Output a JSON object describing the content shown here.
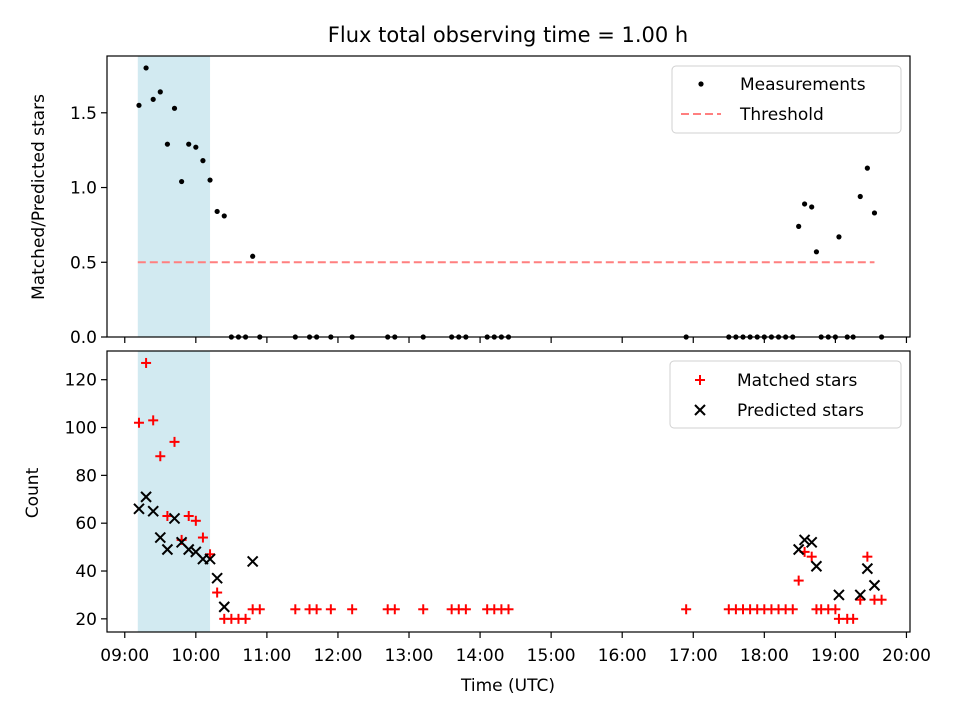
{
  "title": "Flux total observing time = 1.00 h",
  "colors": {
    "measure": "#000000",
    "threshold": "#ff7f7f",
    "matched": "#ff0000",
    "predicted": "#000000",
    "shade": "#add8e6"
  },
  "chart_data": [
    {
      "type": "scatter",
      "title": "Flux total observing time = 1.00 h",
      "xlabel": "",
      "ylabel": "Matched/Predicted stars",
      "xlim": [
        "08:45",
        "20:03"
      ],
      "ylim": [
        0,
        1.88
      ],
      "yticks": [
        "0.0",
        "0.5",
        "1.0",
        "1.5"
      ],
      "legend": {
        "placement": "top-right",
        "entries": [
          "Measurements",
          "Threshold"
        ]
      },
      "shaded_span": [
        "09:11",
        "10:12"
      ],
      "threshold": {
        "name": "Threshold",
        "y": 0.5,
        "x_start": "09:11",
        "x_end": "19:33"
      },
      "series": [
        {
          "name": "Measurements",
          "points": [
            [
              "09:12",
              1.55
            ],
            [
              "09:18",
              1.8
            ],
            [
              "09:24",
              1.59
            ],
            [
              "09:30",
              1.64
            ],
            [
              "09:36",
              1.29
            ],
            [
              "09:42",
              1.53
            ],
            [
              "09:48",
              1.04
            ],
            [
              "09:54",
              1.29
            ],
            [
              "10:00",
              1.27
            ],
            [
              "10:06",
              1.18
            ],
            [
              "10:12",
              1.05
            ],
            [
              "10:18",
              0.84
            ],
            [
              "10:24",
              0.81
            ],
            [
              "10:30",
              0.0
            ],
            [
              "10:36",
              0.0
            ],
            [
              "10:42",
              0.0
            ],
            [
              "10:48",
              0.54
            ],
            [
              "10:54",
              0.0
            ],
            [
              "11:24",
              0.0
            ],
            [
              "11:36",
              0.0
            ],
            [
              "11:42",
              0.0
            ],
            [
              "11:54",
              0.0
            ],
            [
              "12:12",
              0.0
            ],
            [
              "12:42",
              0.0
            ],
            [
              "12:48",
              0.0
            ],
            [
              "13:12",
              0.0
            ],
            [
              "13:36",
              0.0
            ],
            [
              "13:42",
              0.0
            ],
            [
              "13:48",
              0.0
            ],
            [
              "14:06",
              0.0
            ],
            [
              "14:12",
              0.0
            ],
            [
              "14:18",
              0.0
            ],
            [
              "14:24",
              0.0
            ],
            [
              "16:54",
              0.0
            ],
            [
              "17:30",
              0.0
            ],
            [
              "17:36",
              0.0
            ],
            [
              "17:42",
              0.0
            ],
            [
              "17:48",
              0.0
            ],
            [
              "17:54",
              0.0
            ],
            [
              "18:00",
              0.0
            ],
            [
              "18:06",
              0.0
            ],
            [
              "18:12",
              0.0
            ],
            [
              "18:18",
              0.0
            ],
            [
              "18:24",
              0.0
            ],
            [
              "18:29",
              0.74
            ],
            [
              "18:34",
              0.89
            ],
            [
              "18:40",
              0.87
            ],
            [
              "18:44",
              0.57
            ],
            [
              "18:48",
              0.0
            ],
            [
              "18:54",
              0.0
            ],
            [
              "19:00",
              0.0
            ],
            [
              "19:03",
              0.67
            ],
            [
              "19:10",
              0.0
            ],
            [
              "19:15",
              0.0
            ],
            [
              "19:21",
              0.94
            ],
            [
              "19:27",
              1.13
            ],
            [
              "19:33",
              0.83
            ],
            [
              "19:39",
              0.0
            ]
          ]
        }
      ]
    },
    {
      "type": "scatter",
      "xlabel": "Time (UTC)",
      "ylabel": "Count",
      "xlim": [
        "08:45",
        "20:03"
      ],
      "ylim": [
        14.5,
        132
      ],
      "xticks": [
        "09:00",
        "10:00",
        "11:00",
        "12:00",
        "13:00",
        "14:00",
        "15:00",
        "16:00",
        "17:00",
        "18:00",
        "19:00",
        "20:00"
      ],
      "yticks": [
        "20",
        "40",
        "60",
        "80",
        "100",
        "120"
      ],
      "legend": {
        "placement": "top-right",
        "entries": [
          "Matched stars",
          "Predicted stars"
        ]
      },
      "shaded_span": [
        "09:11",
        "10:12"
      ],
      "series": [
        {
          "name": "Matched stars",
          "points": [
            [
              "09:12",
              102
            ],
            [
              "09:18",
              127
            ],
            [
              "09:24",
              103
            ],
            [
              "09:30",
              88
            ],
            [
              "09:36",
              63
            ],
            [
              "09:42",
              94
            ],
            [
              "09:48",
              53
            ],
            [
              "09:54",
              63
            ],
            [
              "10:00",
              61
            ],
            [
              "10:06",
              54
            ],
            [
              "10:12",
              47
            ],
            [
              "10:18",
              31
            ],
            [
              "10:24",
              20
            ],
            [
              "10:30",
              20
            ],
            [
              "10:36",
              20
            ],
            [
              "10:42",
              20
            ],
            [
              "10:48",
              24
            ],
            [
              "10:54",
              24
            ],
            [
              "11:24",
              24
            ],
            [
              "11:36",
              24
            ],
            [
              "11:42",
              24
            ],
            [
              "11:54",
              24
            ],
            [
              "12:12",
              24
            ],
            [
              "12:42",
              24
            ],
            [
              "12:48",
              24
            ],
            [
              "13:12",
              24
            ],
            [
              "13:36",
              24
            ],
            [
              "13:42",
              24
            ],
            [
              "13:48",
              24
            ],
            [
              "14:06",
              24
            ],
            [
              "14:12",
              24
            ],
            [
              "14:18",
              24
            ],
            [
              "14:24",
              24
            ],
            [
              "16:54",
              24
            ],
            [
              "17:30",
              24
            ],
            [
              "17:36",
              24
            ],
            [
              "17:42",
              24
            ],
            [
              "17:48",
              24
            ],
            [
              "17:54",
              24
            ],
            [
              "18:00",
              24
            ],
            [
              "18:06",
              24
            ],
            [
              "18:12",
              24
            ],
            [
              "18:18",
              24
            ],
            [
              "18:24",
              24
            ],
            [
              "18:29",
              36
            ],
            [
              "18:34",
              48
            ],
            [
              "18:40",
              46
            ],
            [
              "18:44",
              24
            ],
            [
              "18:48",
              24
            ],
            [
              "18:54",
              24
            ],
            [
              "19:00",
              24
            ],
            [
              "19:03",
              20
            ],
            [
              "19:10",
              20
            ],
            [
              "19:15",
              20
            ],
            [
              "19:21",
              28
            ],
            [
              "19:27",
              46
            ],
            [
              "19:33",
              28
            ],
            [
              "19:39",
              28
            ]
          ]
        },
        {
          "name": "Predicted stars",
          "points": [
            [
              "09:12",
              66
            ],
            [
              "09:18",
              71
            ],
            [
              "09:24",
              65
            ],
            [
              "09:30",
              54
            ],
            [
              "09:36",
              49
            ],
            [
              "09:42",
              62
            ],
            [
              "09:48",
              52
            ],
            [
              "09:54",
              49
            ],
            [
              "10:00",
              48
            ],
            [
              "10:06",
              45
            ],
            [
              "10:12",
              45
            ],
            [
              "10:18",
              37
            ],
            [
              "10:24",
              25
            ],
            [
              "10:48",
              44
            ],
            [
              "18:29",
              49
            ],
            [
              "18:34",
              53
            ],
            [
              "18:40",
              52
            ],
            [
              "18:44",
              42
            ],
            [
              "19:03",
              30
            ],
            [
              "19:21",
              30
            ],
            [
              "19:27",
              41
            ],
            [
              "19:33",
              34
            ]
          ]
        }
      ]
    }
  ]
}
